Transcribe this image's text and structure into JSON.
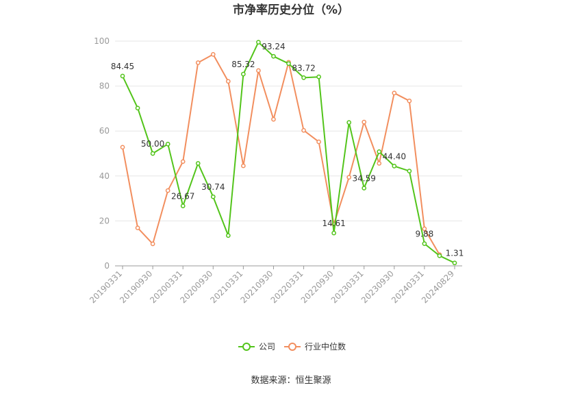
{
  "chart_data": {
    "type": "line",
    "title": "市净率历史分位（%）",
    "xlabel": "",
    "ylabel": "",
    "ylim": [
      0,
      100
    ],
    "yticks": [
      0,
      20,
      40,
      60,
      80,
      100
    ],
    "grid": true,
    "legend_position": "bottom",
    "categories": [
      "20190331",
      "20190630",
      "20190930",
      "20191231",
      "20200331",
      "20200630",
      "20200930",
      "20201231",
      "20210331",
      "20210630",
      "20210930",
      "20211231",
      "20220331",
      "20220630",
      "20220930",
      "20221231",
      "20230331",
      "20230630",
      "20230930",
      "20231231",
      "20240331",
      "20240630",
      "20240829"
    ],
    "tick_labels": [
      "20190331",
      "20190930",
      "20200331",
      "20200930",
      "20210331",
      "20210930",
      "20220331",
      "20220930",
      "20230331",
      "20230930",
      "20240331",
      "20240829"
    ],
    "series": [
      {
        "name": "公司",
        "color": "#52c41a",
        "values": [
          84.45,
          70.2,
          50.0,
          54.2,
          26.67,
          45.6,
          30.74,
          13.5,
          85.32,
          99.5,
          93.24,
          90.0,
          83.72,
          84.1,
          14.61,
          63.8,
          34.59,
          50.8,
          44.4,
          42.2,
          9.88,
          4.5,
          1.31
        ],
        "labels": [
          "84.45",
          "",
          "50.00",
          "",
          "26.67",
          "",
          "30.74",
          "",
          "85.32",
          "",
          "93.24",
          "",
          "83.72",
          "",
          "14.61",
          "",
          "34.59",
          "",
          "44.40",
          "",
          "9.88",
          "",
          "1.31"
        ]
      },
      {
        "name": "行业中位数",
        "color": "#f28e5e",
        "values": [
          52.8,
          16.9,
          9.8,
          33.5,
          46.4,
          90.4,
          94.1,
          82.1,
          44.5,
          86.9,
          65.2,
          90.6,
          60.3,
          55.2,
          18.5,
          39.4,
          64.0,
          45.6,
          76.9,
          73.4,
          16.5,
          5.0,
          null
        ]
      }
    ]
  },
  "source": "数据来源：恒生聚源"
}
